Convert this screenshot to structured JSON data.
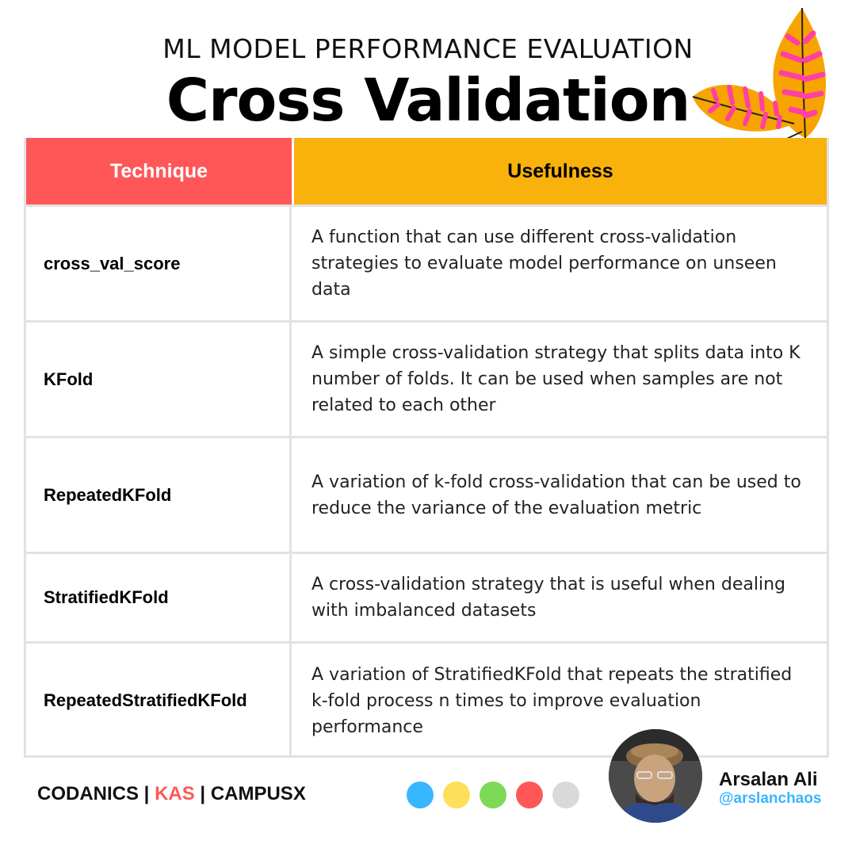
{
  "header": {
    "subtitle": "ML MODEL PERFORMANCE EVALUATION",
    "title": "Cross Validation"
  },
  "table": {
    "columns": [
      "Technique",
      "Usefulness"
    ],
    "rows": [
      {
        "technique": "cross_val_score",
        "usefulness": "A function that can use different cross-validation strategies to evaluate model performance on unseen data"
      },
      {
        "technique": "KFold",
        "usefulness": "A simple cross-validation strategy that splits data into K number of folds. It can be used when samples are not related to each other"
      },
      {
        "technique": "RepeatedKFold",
        "usefulness": "A variation of k-fold cross-validation that can be used to reduce the variance of the evaluation metric"
      },
      {
        "technique": "StratifiedKFold",
        "usefulness": "A cross-validation strategy that is useful when dealing with imbalanced datasets"
      },
      {
        "technique": "RepeatedStratifiedKFold",
        "usefulness": "A variation of StratifiedKFold that repeats the stratified k-fold process n times to improve evaluation performance"
      }
    ]
  },
  "footer": {
    "brand_1": "CODANICS",
    "separator_1": " | ",
    "brand_2": "KAS",
    "separator_2": " | ",
    "brand_3": "CAMPUSX",
    "dots": [
      "#38b6ff",
      "#ffde59",
      "#7ed957",
      "#ff5757",
      "#d9d9d9"
    ],
    "author_name": "Arsalan Ali",
    "author_handle": "@arslanchaos"
  },
  "colors": {
    "technique_header": "#ff5757",
    "usefulness_header": "#f9b10b",
    "leaf_orange": "#f7a400",
    "leaf_pink": "#ff3fa4"
  },
  "icons": {
    "decoration": "leaf-icon"
  }
}
